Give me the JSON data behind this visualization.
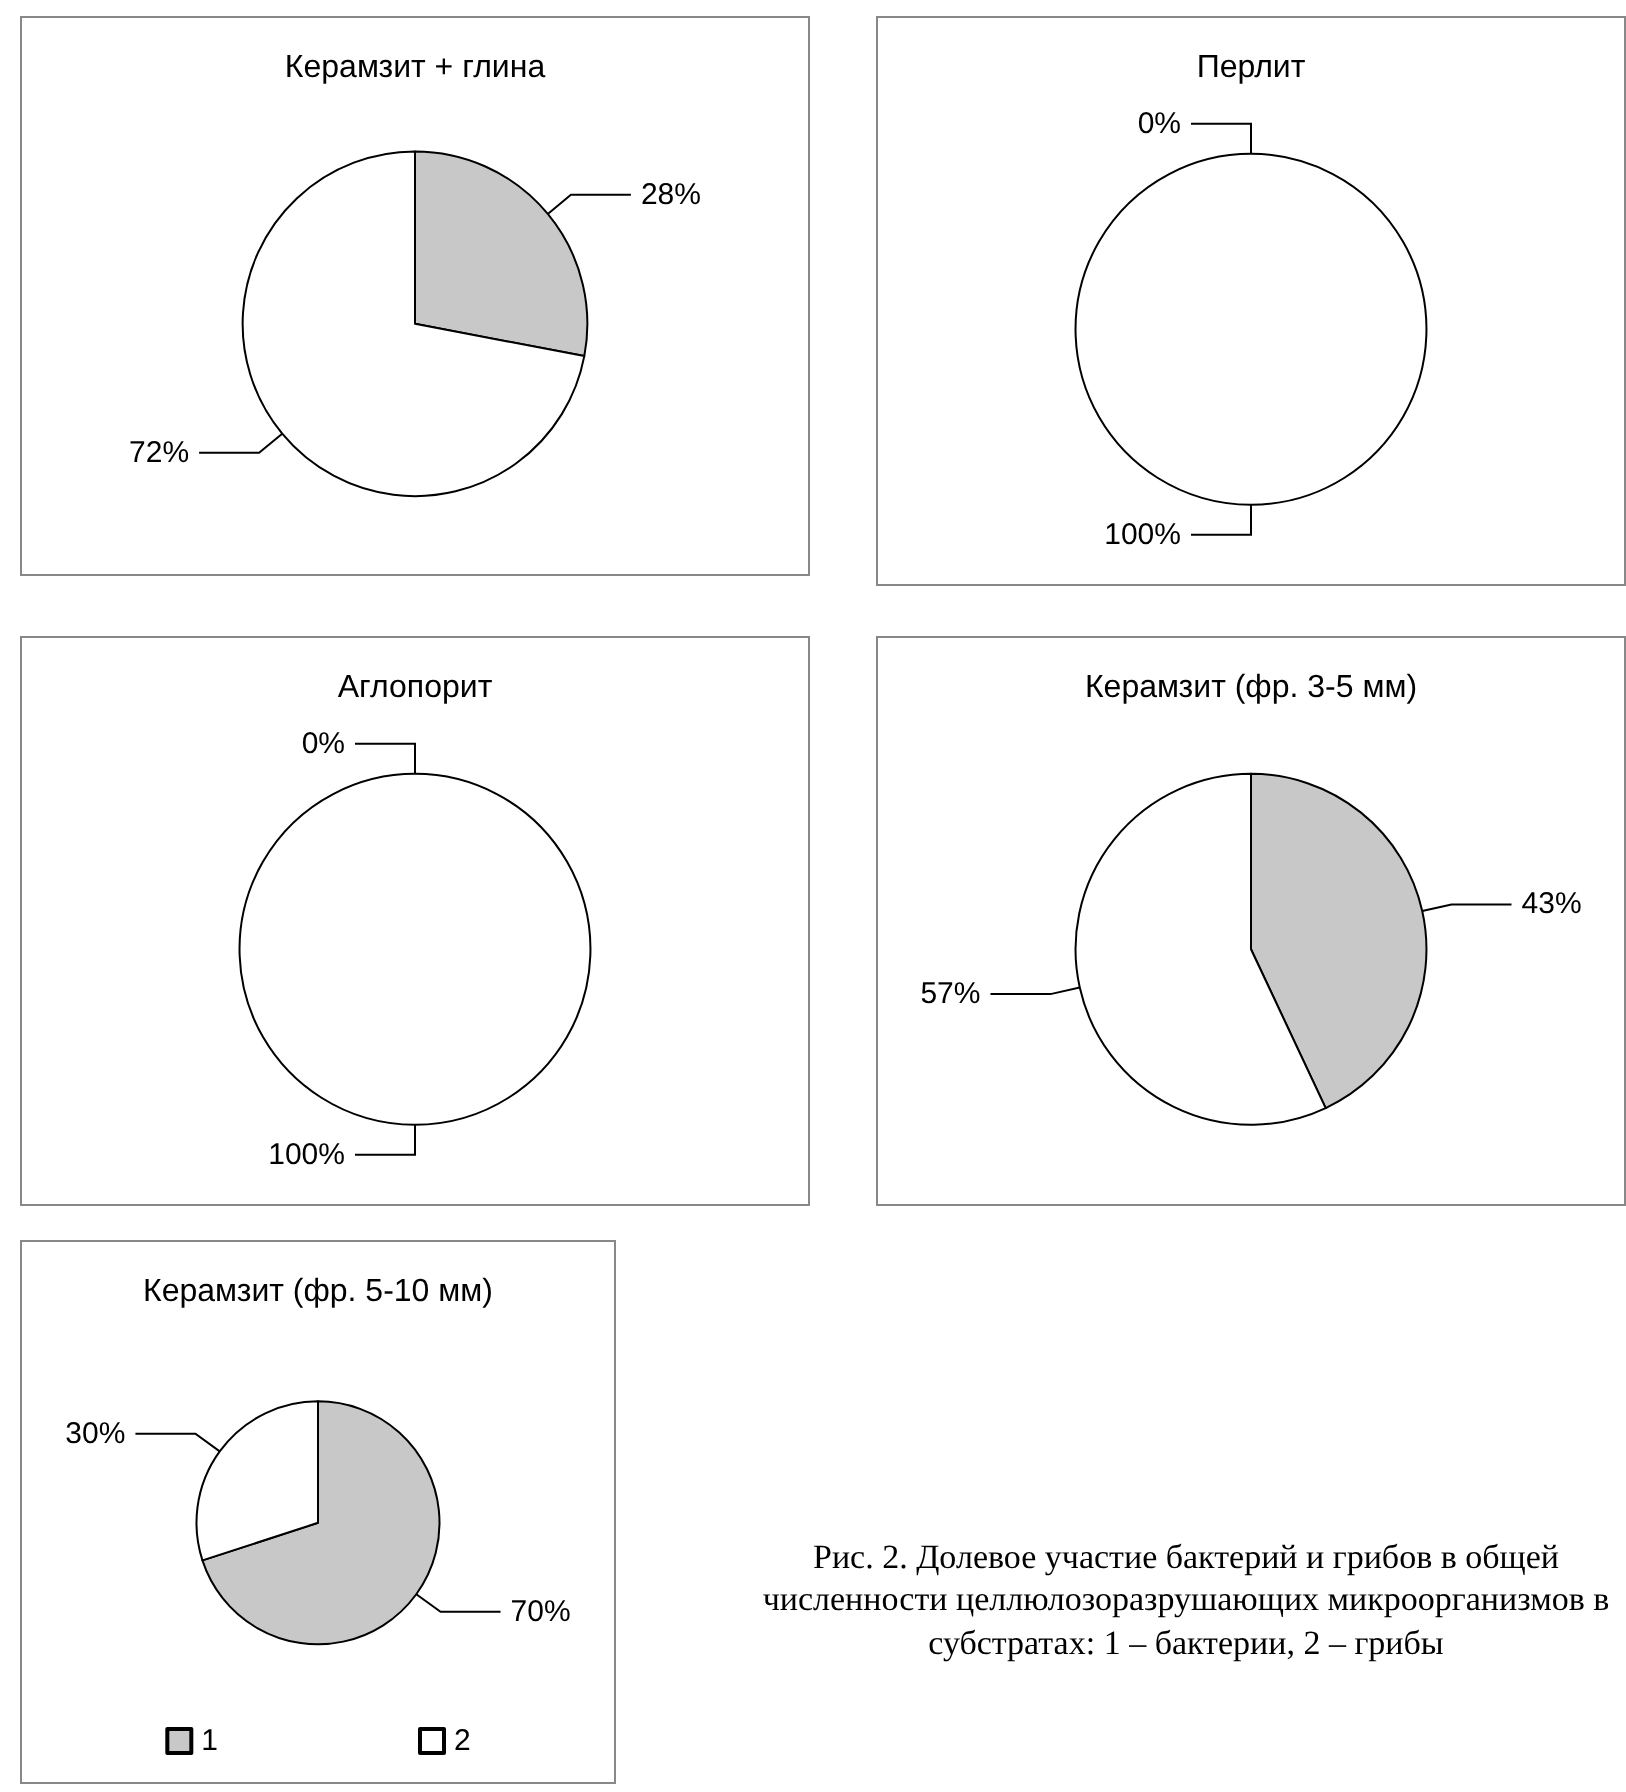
{
  "chart_data": [
    {
      "type": "pie",
      "title": "Керамзит + глина",
      "categories": [
        null,
        null
      ],
      "values": [
        28,
        72
      ],
      "value_labels": [
        "28%",
        "72%"
      ],
      "colors": [
        "#c8c8c8",
        "#ffffff"
      ],
      "legend": false
    },
    {
      "type": "pie",
      "title": "Перлит",
      "categories": [
        null,
        null
      ],
      "values": [
        0,
        100
      ],
      "value_labels": [
        "0%",
        "100%"
      ],
      "colors": [
        "#c8c8c8",
        "#ffffff"
      ],
      "legend": false
    },
    {
      "type": "pie",
      "title": "Аглопорит",
      "categories": [
        null,
        null
      ],
      "values": [
        0,
        100
      ],
      "value_labels": [
        "0%",
        "100%"
      ],
      "colors": [
        "#c8c8c8",
        "#ffffff"
      ],
      "legend": false
    },
    {
      "type": "pie",
      "title": "Керамзит (фр. 3-5 мм)",
      "categories": [
        null,
        null
      ],
      "values": [
        43,
        57
      ],
      "value_labels": [
        "43%",
        "57%"
      ],
      "colors": [
        "#c8c8c8",
        "#ffffff"
      ],
      "legend": false
    },
    {
      "type": "pie",
      "title": "Керамзит (фр. 5-10 мм)",
      "categories": [
        "1",
        "2"
      ],
      "values": [
        70,
        30
      ],
      "value_labels": [
        "70%",
        "30%"
      ],
      "colors": [
        "#c8c8c8",
        "#ffffff"
      ],
      "legend": "bottom",
      "annotations": [
        "Рис. 2. Долевое участие бактерий и грибов в общей численности целлюлозоразрушающих микроорганизмов в субстратах: 1 – бактерии, 2 – грибы"
      ]
    }
  ]
}
